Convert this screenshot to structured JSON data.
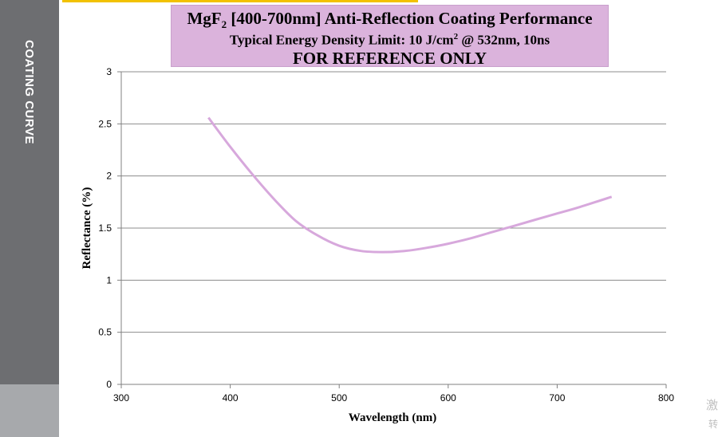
{
  "sidebar": {
    "label": "COATING CURVE"
  },
  "header": {
    "title_prefix": "MgF",
    "title_sub": "2",
    "title_rest": " [400-700nm] Anti-Reflection Coating Performance",
    "subtitle_prefix": "Typical Energy Density Limit: 10 J/cm",
    "subtitle_sup": "2",
    "subtitle_rest": " @ 532nm, 10ns",
    "note": "FOR REFERENCE ONLY"
  },
  "edge_text": {
    "line1": "激",
    "line2": "转"
  },
  "colors": {
    "curve": "#d7a8dc",
    "title_bg": "#dbb3dc",
    "sidebar": "#6d6e71",
    "sidebar_light": "#a7a9ac",
    "accent_strip": "#f2c200"
  },
  "chart_data": {
    "type": "line",
    "xlabel": "Wavelength (nm)",
    "ylabel": "Reflectance (%)",
    "xlim": [
      300,
      800
    ],
    "ylim": [
      0,
      3
    ],
    "x_ticks": [
      300,
      400,
      500,
      600,
      700,
      800
    ],
    "y_ticks": [
      0,
      0.5,
      1,
      1.5,
      2,
      2.5,
      3
    ],
    "y_tick_labels": [
      "0",
      "0.5",
      "1",
      "1.5",
      "2",
      "2.5",
      "3"
    ],
    "grid": "horizontal",
    "series": [
      {
        "x": [
          380,
          400,
          420,
          440,
          460,
          480,
          500,
          520,
          540,
          560,
          580,
          600,
          620,
          640,
          660,
          680,
          700,
          720,
          750
        ],
        "y": [
          2.56,
          2.28,
          2.02,
          1.78,
          1.57,
          1.43,
          1.33,
          1.28,
          1.27,
          1.28,
          1.31,
          1.35,
          1.4,
          1.46,
          1.52,
          1.58,
          1.64,
          1.7,
          1.8
        ]
      }
    ]
  }
}
